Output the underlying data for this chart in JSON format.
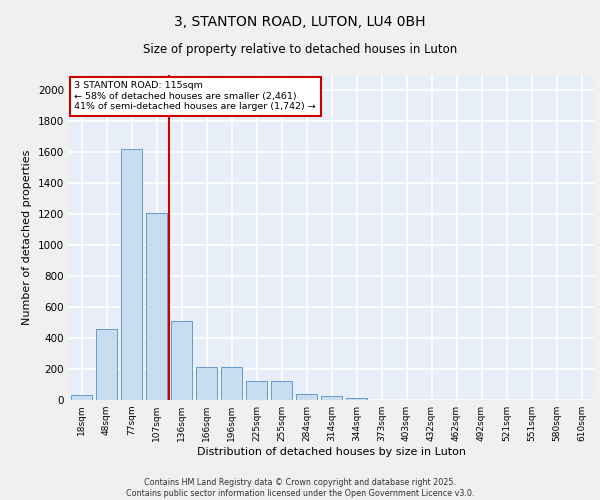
{
  "title_line1": "3, STANTON ROAD, LUTON, LU4 0BH",
  "title_line2": "Size of property relative to detached houses in Luton",
  "xlabel": "Distribution of detached houses by size in Luton",
  "ylabel": "Number of detached properties",
  "categories": [
    "18sqm",
    "48sqm",
    "77sqm",
    "107sqm",
    "136sqm",
    "166sqm",
    "196sqm",
    "225sqm",
    "255sqm",
    "284sqm",
    "314sqm",
    "344sqm",
    "373sqm",
    "403sqm",
    "432sqm",
    "462sqm",
    "492sqm",
    "521sqm",
    "551sqm",
    "580sqm",
    "610sqm"
  ],
  "values": [
    30,
    460,
    1620,
    1210,
    510,
    215,
    215,
    125,
    125,
    40,
    25,
    15,
    0,
    0,
    0,
    0,
    0,
    0,
    0,
    0,
    0
  ],
  "bar_color": "#c8ddf0",
  "bar_edge_color": "#6699cc",
  "background_color": "#e8eef8",
  "grid_color": "#ffffff",
  "vline_x": 3.5,
  "vline_color": "#cc0000",
  "annotation_text": "3 STANTON ROAD: 115sqm\n← 58% of detached houses are smaller (2,461)\n41% of semi-detached houses are larger (1,742) →",
  "annotation_box_color": "#ffffff",
  "annotation_box_edge_color": "#cc0000",
  "ylim": [
    0,
    2100
  ],
  "yticks": [
    0,
    200,
    400,
    600,
    800,
    1000,
    1200,
    1400,
    1600,
    1800,
    2000
  ],
  "footer_line1": "Contains HM Land Registry data © Crown copyright and database right 2025.",
  "footer_line2": "Contains public sector information licensed under the Open Government Licence v3.0."
}
